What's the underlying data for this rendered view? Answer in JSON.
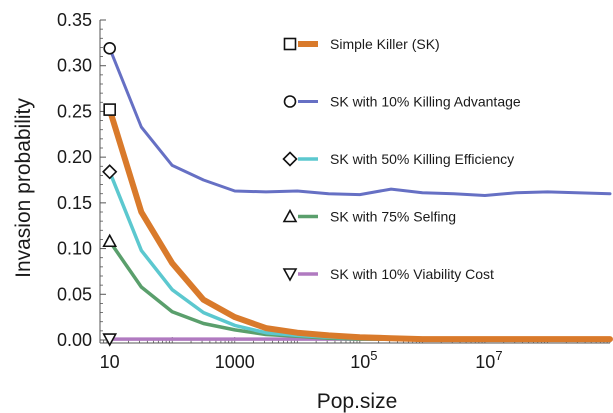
{
  "chart_data": {
    "type": "line",
    "xlabel": "Pop.size",
    "ylabel": "Invasion probability",
    "x_scale": "log10",
    "xlim": [
      7,
      1000000000
    ],
    "ylim": [
      0,
      0.35
    ],
    "y_ticks": [
      "0.00",
      "0.05",
      "0.10",
      "0.15",
      "0.20",
      "0.25",
      "0.30",
      "0.35"
    ],
    "x_ticks": [
      {
        "value": 10,
        "base": "10",
        "exp": ""
      },
      {
        "value": 1000,
        "base": "1000",
        "exp": ""
      },
      {
        "value": 100000,
        "base": "10",
        "exp": "5"
      },
      {
        "value": 10000000,
        "base": "10",
        "exp": "7"
      }
    ],
    "x": [
      10,
      32,
      100,
      316,
      1000,
      3162,
      10000,
      31623,
      100000,
      316228,
      1000000,
      3162278,
      10000000,
      31622777,
      100000000,
      1000000000
    ],
    "series": [
      {
        "name": "Simple Killer (SK)",
        "color": "#d97a2b",
        "width": 6,
        "marker": "square",
        "values": [
          0.252,
          0.14,
          0.084,
          0.044,
          0.025,
          0.013,
          0.008,
          0.005,
          0.003,
          0.002,
          0.001,
          0.001,
          0.001,
          0.001,
          0.001,
          0.001
        ]
      },
      {
        "name": "SK with 10% Killing Advantage",
        "color": "#6670c4",
        "width": 3,
        "marker": "circle",
        "values": [
          0.319,
          0.233,
          0.191,
          0.175,
          0.163,
          0.162,
          0.163,
          0.16,
          0.159,
          0.165,
          0.161,
          0.16,
          0.158,
          0.161,
          0.162,
          0.16
        ]
      },
      {
        "name": "SK with 50% Killing Efficiency",
        "color": "#5cc8cf",
        "width": 3.5,
        "marker": "diamond",
        "values": [
          0.184,
          0.098,
          0.055,
          0.03,
          0.016,
          0.008,
          0.005,
          0.003,
          0.002,
          0.001,
          0.001,
          0.001,
          0.001,
          0.001,
          0.001,
          0.001
        ]
      },
      {
        "name": "SK with 75% Selfing",
        "color": "#5a9f6c",
        "width": 3.5,
        "marker": "triangle-up",
        "values": [
          0.108,
          0.058,
          0.031,
          0.018,
          0.011,
          0.006,
          0.004,
          0.002,
          0.001,
          0.001,
          0.001,
          0.001,
          0.001,
          0.001,
          0.001,
          0.001
        ]
      },
      {
        "name": "SK with 10% Viability Cost",
        "color": "#b07ac0",
        "width": 3.5,
        "marker": "triangle-down",
        "values": [
          0.001,
          0.001,
          0.001,
          0.001,
          0.001,
          0.001,
          0.001,
          0.001,
          0.001,
          0.001,
          0.001,
          0.001,
          0.001,
          0.001,
          0.001,
          0.001
        ]
      }
    ],
    "legend_position": "top-right"
  }
}
